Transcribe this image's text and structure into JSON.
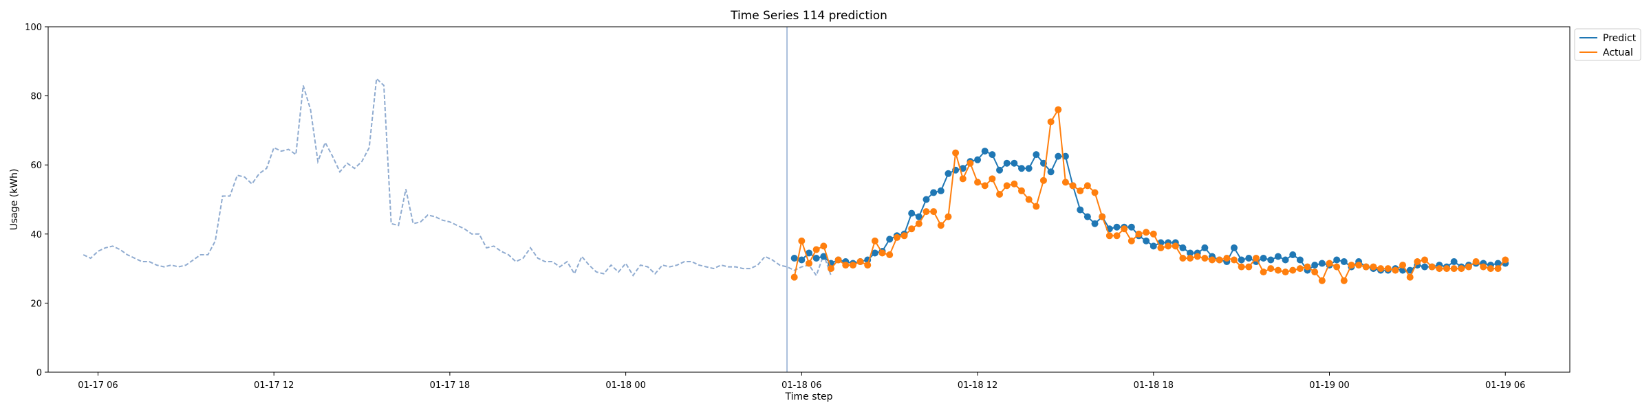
{
  "chart_data": {
    "type": "line",
    "title": "Time Series 114 prediction",
    "xlabel": "Time step",
    "ylabel": "Usage (kWh)",
    "ylim": [
      0,
      100
    ],
    "yticks": [
      0,
      20,
      40,
      60,
      80,
      100
    ],
    "xlim": [
      "01-17 04:18",
      "01-19 08:12"
    ],
    "x_tick_format": "MM-DD HH",
    "xticks": [
      "01-17 06:00",
      "01-17 12:00",
      "01-17 18:00",
      "01-18 00:00",
      "01-18 06:00",
      "01-18 12:00",
      "01-18 18:00",
      "01-19 00:00",
      "01-19 06:00"
    ],
    "x_tick_labels": [
      "01-17 06",
      "01-17 12",
      "01-17 18",
      "01-18 00",
      "01-18 06",
      "01-18 12",
      "01-18 18",
      "01-19 00",
      "01-19 06"
    ],
    "forecast_start": "01-18 05:30",
    "grid": false,
    "legend_position": "top-right, outside plot",
    "colors": {
      "history": "#8fabd0",
      "predict": "#1f77b4",
      "actual": "#ff7f0e",
      "divider": "#8fabd0"
    },
    "history": {
      "x_start": "01-17 05:30",
      "step_minutes": 15,
      "values": [
        34.0,
        33.0,
        35.0,
        36.0,
        36.5,
        35.5,
        34.0,
        33.0,
        32.0,
        32.0,
        31.0,
        30.5,
        31.0,
        30.5,
        31.0,
        32.5,
        34.0,
        34.0,
        38.0,
        51.0,
        51.0,
        57.0,
        56.5,
        54.5,
        57.5,
        59.0,
        65.0,
        64.0,
        64.5,
        63.0,
        83.0,
        76.0,
        61.0,
        66.5,
        62.5,
        58.0,
        60.5,
        59.0,
        61.0,
        65.0,
        85.0,
        83.0,
        43.0,
        42.5,
        53.0,
        43.0,
        43.5,
        45.5,
        45.0,
        44.0,
        43.5,
        42.5,
        41.5,
        40.0,
        40.0,
        36.0,
        36.5,
        35.0,
        34.0,
        32.0,
        33.0,
        36.0,
        33.0,
        32.0,
        32.0,
        30.5,
        32.0,
        28.5,
        33.5,
        31.0,
        29.0,
        28.5,
        31.0,
        29.0,
        31.5,
        28.0,
        31.0,
        30.5,
        28.5,
        31.0,
        30.5,
        31.0,
        32.0,
        32.0,
        31.0,
        30.5,
        30.0,
        31.0,
        30.5,
        30.5,
        30.0,
        30.0,
        31.0,
        33.5,
        32.5,
        31.0,
        30.5,
        29.5,
        30.5,
        31.0,
        28.0,
        34.0,
        28.0
      ]
    },
    "x_start_forecast": "01-18 05:45",
    "step_minutes": 15,
    "series": [
      {
        "name": "Predict",
        "values": [
          33.0,
          32.5,
          34.5,
          33.0,
          33.5,
          31.5,
          32.5,
          32.0,
          31.5,
          32.0,
          32.5,
          34.5,
          35.0,
          38.5,
          39.5,
          40.0,
          46.0,
          45.0,
          50.0,
          52.0,
          52.5,
          57.5,
          58.5,
          59.0,
          61.0,
          61.5,
          64.0,
          63.0,
          58.5,
          60.5,
          60.5,
          59.0,
          59.0,
          63.0,
          60.5,
          58.0,
          62.5,
          62.5,
          54.0,
          47.0,
          45.0,
          43.0,
          45.0,
          41.5,
          42.0,
          42.0,
          42.0,
          39.5,
          38.0,
          36.5,
          37.5,
          37.5,
          37.5,
          36.0,
          34.5,
          34.5,
          36.0,
          33.5,
          32.5,
          32.0,
          36.0,
          32.5,
          33.0,
          32.0,
          33.0,
          32.5,
          33.5,
          32.5,
          34.0,
          32.5,
          29.5,
          31.0,
          31.5,
          31.0,
          32.5,
          32.0,
          30.5,
          32.0,
          30.5,
          30.0,
          29.5,
          29.5,
          30.0,
          29.5,
          29.5,
          31.0,
          30.5,
          30.5,
          31.0,
          30.5,
          32.0,
          30.5,
          31.0,
          31.5,
          31.5,
          31.0,
          31.5,
          31.5
        ]
      },
      {
        "name": "Actual",
        "values": [
          27.5,
          38.0,
          31.5,
          35.5,
          36.5,
          30.0,
          32.5,
          31.0,
          31.0,
          32.0,
          31.0,
          38.0,
          34.5,
          34.0,
          39.0,
          39.5,
          41.5,
          43.0,
          46.5,
          46.5,
          42.5,
          45.0,
          63.5,
          56.0,
          60.5,
          55.0,
          54.0,
          56.0,
          51.5,
          54.0,
          54.5,
          52.5,
          50.0,
          48.0,
          55.5,
          72.5,
          76.0,
          55.0,
          54.0,
          52.5,
          54.0,
          52.0,
          45.0,
          39.5,
          39.5,
          41.5,
          38.0,
          40.0,
          40.5,
          40.0,
          36.0,
          36.5,
          36.5,
          33.0,
          33.0,
          33.5,
          33.0,
          32.5,
          32.5,
          33.0,
          32.5,
          30.5,
          30.5,
          33.0,
          29.0,
          30.0,
          29.5,
          29.0,
          29.5,
          30.0,
          30.5,
          29.0,
          26.5,
          31.5,
          30.5,
          26.5,
          31.0,
          31.0,
          30.5,
          30.5,
          30.0,
          30.0,
          29.5,
          31.0,
          27.5,
          32.0,
          32.5,
          30.5,
          30.0,
          30.0,
          30.0,
          30.0,
          30.5,
          32.0,
          30.5,
          30.0,
          30.0,
          32.5
        ]
      }
    ]
  }
}
